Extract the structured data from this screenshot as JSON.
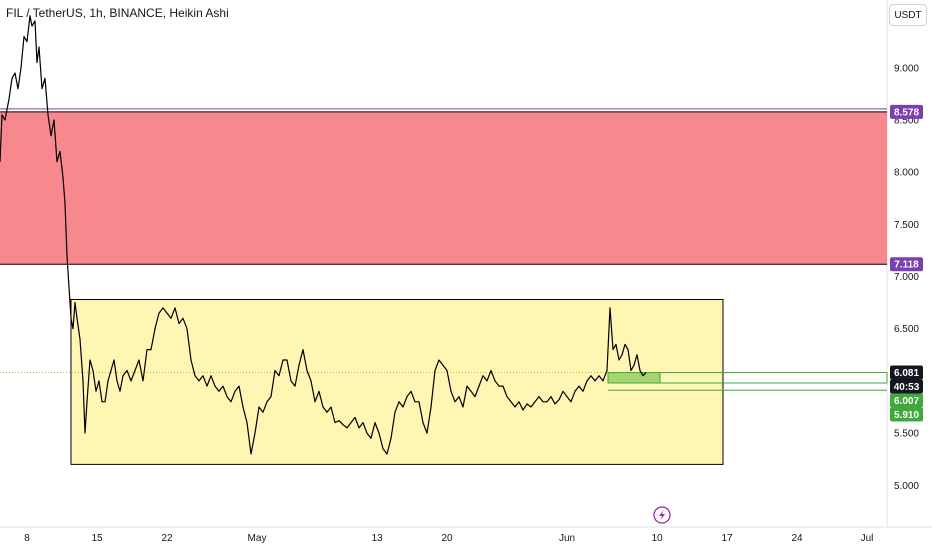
{
  "header": {
    "title": "FIL / TetherUS, 1h, BINANCE, Heikin Ashi",
    "currency_button": "USDT"
  },
  "icons": {
    "event_icon": "lightning-icon"
  },
  "colors": {
    "resistance_zone": "#f7888d",
    "range_box": "#fff6b3",
    "candle": "#000000",
    "target_box": "#a8d46f",
    "tag_purple": "#7b3fb0",
    "tag_green": "#3fa83f",
    "tag_black": "#131722"
  },
  "chart_data": {
    "type": "line",
    "symbol": "FIL/USDT",
    "interval": "1h",
    "y_axis": {
      "ticks": [
        "9.000",
        "8.500",
        "8.000",
        "7.500",
        "7.000",
        "6.500",
        "6.000",
        "5.500",
        "5.000"
      ],
      "ylim": [
        4.6,
        9.65
      ]
    },
    "x_axis": {
      "ticks": [
        "8",
        "15",
        "22",
        "May",
        "13",
        "20",
        "Jun",
        "10",
        "17",
        "24",
        "Jul"
      ],
      "tick_days": [
        0,
        7,
        14,
        23,
        35,
        42,
        54,
        63,
        70,
        77,
        84
      ],
      "xlim": [
        -2.7,
        86
      ]
    },
    "levels": {
      "resistance_top": 8.578,
      "resistance_bottom": 7.118,
      "current_price": 6.081,
      "countdown": "40:53",
      "level_a": 6.007,
      "level_b": 5.91
    },
    "zones": {
      "resistance": {
        "from": 7.118,
        "to": 8.578
      },
      "range": {
        "x_from": 4.4,
        "x_to": 69.6,
        "y_low": 5.2,
        "y_high": 6.78
      },
      "target": {
        "x_from": 58.1,
        "x_to": 63.3,
        "y_low": 5.98,
        "y_high": 6.08
      }
    },
    "series": [
      {
        "points": [
          [
            -2.7,
            8.1
          ],
          [
            -2.5,
            8.55
          ],
          [
            -2.2,
            8.5
          ],
          [
            -1.8,
            8.7
          ],
          [
            -1.5,
            8.9
          ],
          [
            -1.2,
            8.95
          ],
          [
            -0.9,
            8.8
          ],
          [
            -0.6,
            9.0
          ],
          [
            -0.3,
            9.3
          ],
          [
            0,
            9.25
          ],
          [
            0.3,
            9.5
          ],
          [
            0.5,
            9.4
          ],
          [
            0.8,
            9.45
          ],
          [
            1.0,
            9.05
          ],
          [
            1.2,
            9.2
          ],
          [
            1.5,
            8.8
          ],
          [
            1.8,
            8.9
          ],
          [
            2.1,
            8.55
          ],
          [
            2.4,
            8.35
          ],
          [
            2.7,
            8.5
          ],
          [
            3.0,
            8.1
          ],
          [
            3.3,
            8.2
          ],
          [
            3.6,
            7.95
          ],
          [
            3.8,
            7.7
          ],
          [
            4.0,
            7.2
          ],
          [
            4.2,
            6.9
          ],
          [
            4.4,
            6.6
          ],
          [
            4.6,
            6.5
          ],
          [
            4.8,
            6.75
          ],
          [
            5.0,
            6.6
          ],
          [
            5.3,
            6.4
          ],
          [
            5.6,
            6.0
          ],
          [
            5.8,
            5.5
          ],
          [
            6.0,
            5.8
          ],
          [
            6.3,
            6.2
          ],
          [
            6.6,
            6.1
          ],
          [
            6.9,
            5.9
          ],
          [
            7.2,
            6.0
          ],
          [
            7.5,
            5.8
          ],
          [
            7.8,
            5.8
          ],
          [
            8.1,
            6.0
          ],
          [
            8.4,
            6.1
          ],
          [
            8.7,
            6.2
          ],
          [
            9.0,
            6.0
          ],
          [
            9.3,
            5.9
          ],
          [
            9.6,
            6.05
          ],
          [
            10.0,
            6.1
          ],
          [
            10.4,
            6.0
          ],
          [
            10.8,
            6.1
          ],
          [
            11.2,
            6.2
          ],
          [
            11.6,
            6.0
          ],
          [
            12.0,
            6.3
          ],
          [
            12.4,
            6.3
          ],
          [
            12.8,
            6.5
          ],
          [
            13.2,
            6.65
          ],
          [
            13.6,
            6.7
          ],
          [
            14.0,
            6.65
          ],
          [
            14.4,
            6.6
          ],
          [
            14.8,
            6.7
          ],
          [
            15.2,
            6.55
          ],
          [
            15.6,
            6.6
          ],
          [
            16.0,
            6.5
          ],
          [
            16.4,
            6.2
          ],
          [
            16.8,
            6.05
          ],
          [
            17.2,
            6.0
          ],
          [
            17.6,
            6.05
          ],
          [
            18.0,
            5.95
          ],
          [
            18.4,
            6.05
          ],
          [
            18.8,
            5.95
          ],
          [
            19.2,
            5.9
          ],
          [
            19.6,
            5.95
          ],
          [
            20.0,
            5.85
          ],
          [
            20.4,
            5.8
          ],
          [
            20.8,
            5.9
          ],
          [
            21.2,
            5.95
          ],
          [
            21.6,
            5.75
          ],
          [
            22.0,
            5.6
          ],
          [
            22.4,
            5.3
          ],
          [
            22.8,
            5.5
          ],
          [
            23.2,
            5.75
          ],
          [
            23.6,
            5.7
          ],
          [
            24.0,
            5.8
          ],
          [
            24.4,
            5.85
          ],
          [
            24.8,
            6.1
          ],
          [
            25.2,
            6.05
          ],
          [
            25.6,
            6.2
          ],
          [
            26.0,
            6.2
          ],
          [
            26.4,
            6.0
          ],
          [
            26.8,
            5.95
          ],
          [
            27.2,
            6.15
          ],
          [
            27.6,
            6.3
          ],
          [
            28.0,
            6.1
          ],
          [
            28.4,
            6.0
          ],
          [
            28.8,
            5.8
          ],
          [
            29.2,
            5.9
          ],
          [
            29.6,
            5.75
          ],
          [
            30.0,
            5.7
          ],
          [
            30.4,
            5.75
          ],
          [
            30.8,
            5.6
          ],
          [
            31.2,
            5.62
          ],
          [
            31.6,
            5.58
          ],
          [
            32.0,
            5.55
          ],
          [
            32.4,
            5.6
          ],
          [
            32.8,
            5.65
          ],
          [
            33.2,
            5.55
          ],
          [
            33.6,
            5.6
          ],
          [
            34.0,
            5.5
          ],
          [
            34.4,
            5.45
          ],
          [
            34.8,
            5.6
          ],
          [
            35.2,
            5.5
          ],
          [
            35.6,
            5.35
          ],
          [
            36.0,
            5.3
          ],
          [
            36.4,
            5.45
          ],
          [
            36.8,
            5.7
          ],
          [
            37.2,
            5.8
          ],
          [
            37.6,
            5.75
          ],
          [
            38.0,
            5.85
          ],
          [
            38.4,
            5.9
          ],
          [
            38.8,
            5.8
          ],
          [
            39.2,
            5.8
          ],
          [
            39.6,
            5.6
          ],
          [
            40.0,
            5.5
          ],
          [
            40.4,
            5.75
          ],
          [
            40.8,
            6.1
          ],
          [
            41.2,
            6.2
          ],
          [
            41.6,
            6.15
          ],
          [
            42.0,
            6.1
          ],
          [
            42.4,
            5.9
          ],
          [
            42.8,
            5.8
          ],
          [
            43.2,
            5.85
          ],
          [
            43.6,
            5.75
          ],
          [
            44.0,
            5.95
          ],
          [
            44.4,
            5.9
          ],
          [
            44.8,
            5.85
          ],
          [
            45.2,
            5.95
          ],
          [
            45.6,
            6.05
          ],
          [
            46.0,
            6.0
          ],
          [
            46.4,
            6.1
          ],
          [
            46.8,
            6.0
          ],
          [
            47.2,
            5.95
          ],
          [
            47.6,
            5.95
          ],
          [
            48.0,
            5.85
          ],
          [
            48.4,
            5.8
          ],
          [
            48.8,
            5.75
          ],
          [
            49.2,
            5.8
          ],
          [
            49.6,
            5.72
          ],
          [
            50.0,
            5.78
          ],
          [
            50.4,
            5.75
          ],
          [
            50.8,
            5.8
          ],
          [
            51.2,
            5.85
          ],
          [
            51.6,
            5.8
          ],
          [
            52.0,
            5.8
          ],
          [
            52.4,
            5.85
          ],
          [
            52.8,
            5.78
          ],
          [
            53.2,
            5.82
          ],
          [
            53.6,
            5.9
          ],
          [
            54.0,
            5.85
          ],
          [
            54.4,
            5.8
          ],
          [
            54.8,
            5.9
          ],
          [
            55.2,
            5.95
          ],
          [
            55.6,
            5.9
          ],
          [
            56.0,
            6.0
          ],
          [
            56.4,
            6.05
          ],
          [
            56.8,
            6.0
          ],
          [
            57.2,
            6.05
          ],
          [
            57.6,
            6.0
          ],
          [
            58.0,
            6.1
          ],
          [
            58.3,
            6.7
          ],
          [
            58.6,
            6.3
          ],
          [
            58.9,
            6.35
          ],
          [
            59.2,
            6.2
          ],
          [
            59.5,
            6.25
          ],
          [
            59.8,
            6.35
          ],
          [
            60.1,
            6.3
          ],
          [
            60.4,
            6.1
          ],
          [
            60.7,
            6.15
          ],
          [
            61.0,
            6.25
          ],
          [
            61.3,
            6.1
          ],
          [
            61.6,
            6.05
          ],
          [
            61.9,
            6.08
          ]
        ]
      }
    ]
  }
}
